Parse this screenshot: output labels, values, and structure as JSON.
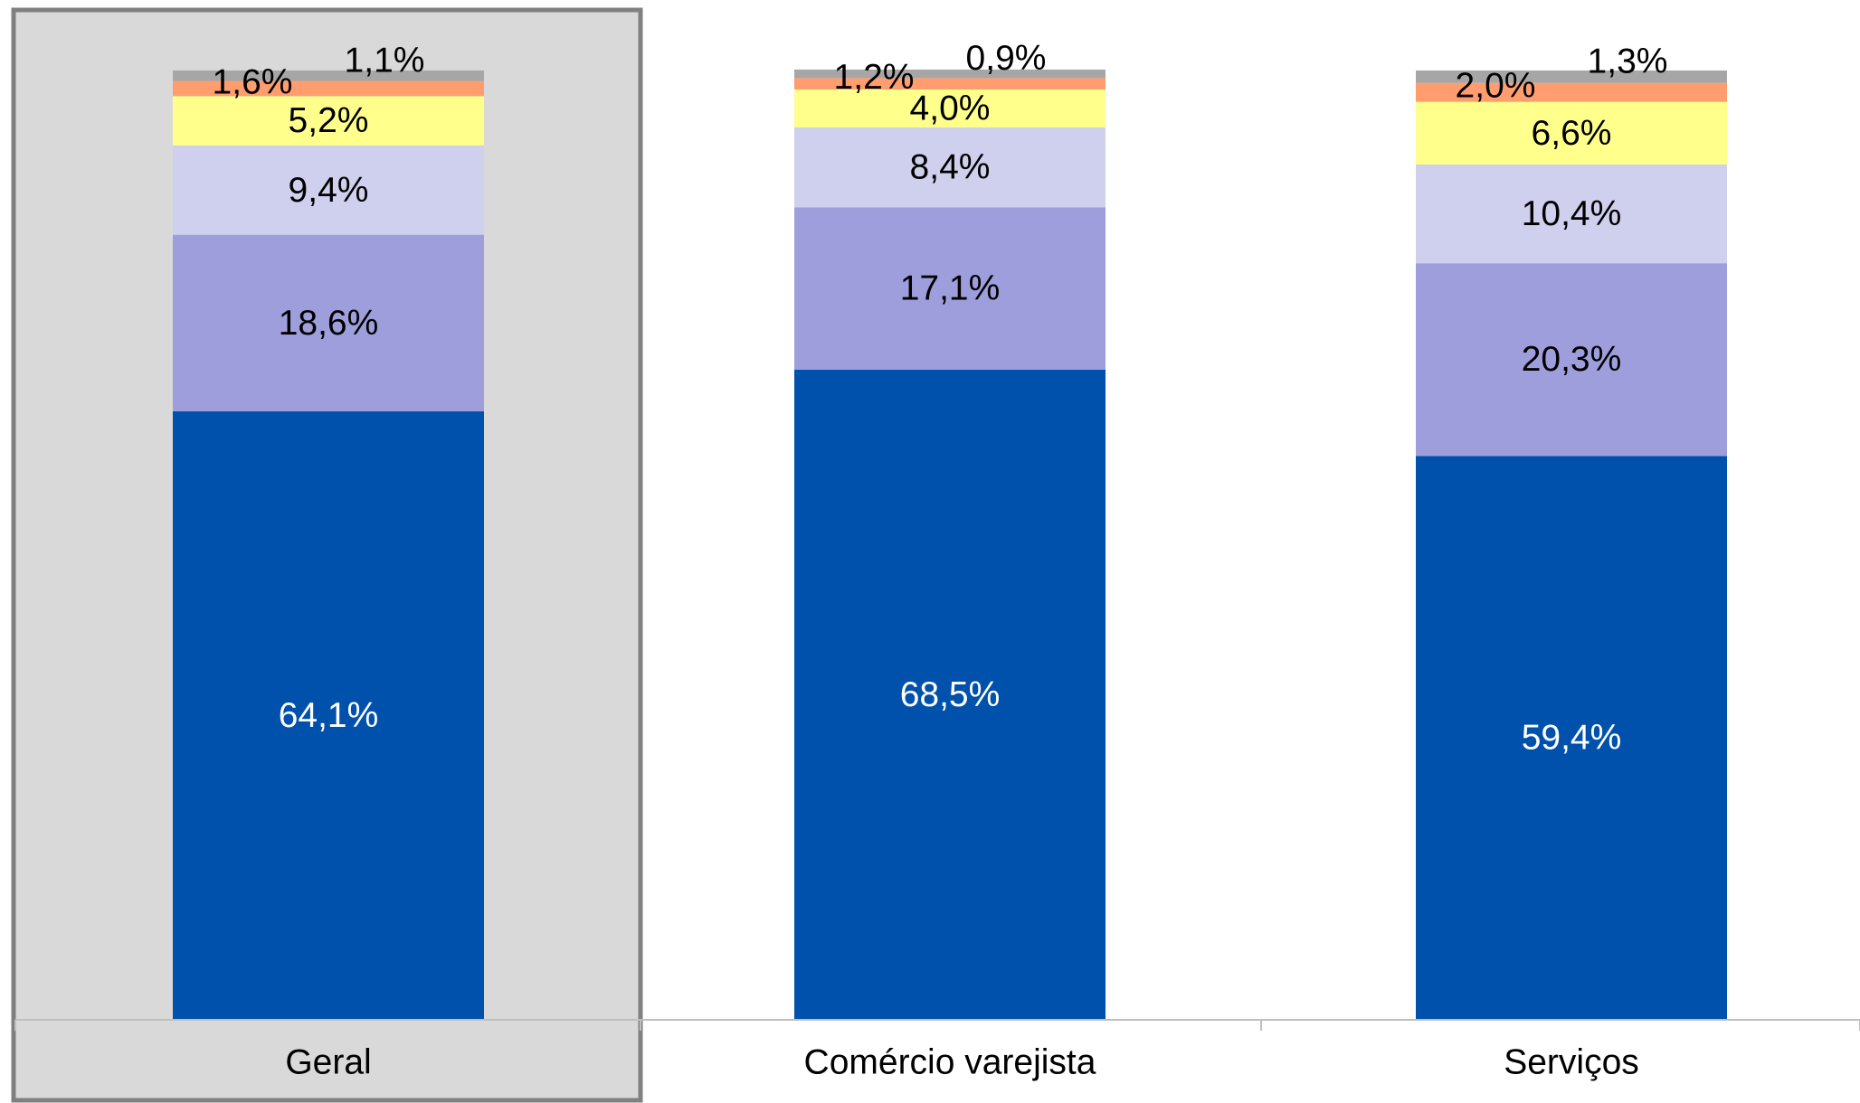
{
  "chart_data": {
    "type": "bar",
    "stacked": true,
    "normalized": true,
    "categories": [
      "Geral",
      "Comércio varejista",
      "Serviços"
    ],
    "series": [
      {
        "values": [
          64.1,
          68.5,
          59.4
        ],
        "labels": [
          "64,1%",
          "68,5%",
          "59,4%"
        ],
        "color": "#0051AC",
        "label_color": "#FFFFFF"
      },
      {
        "values": [
          18.6,
          17.1,
          20.3
        ],
        "labels": [
          "18,6%",
          "17,1%",
          "20,3%"
        ],
        "color": "#9E9EDD",
        "label_color": "#000000"
      },
      {
        "values": [
          9.4,
          8.4,
          10.4
        ],
        "labels": [
          "9,4%",
          "8,4%",
          "10,4%"
        ],
        "color": "#CFCFEE",
        "label_color": "#000000"
      },
      {
        "values": [
          5.2,
          4.0,
          6.6
        ],
        "labels": [
          "5,2%",
          "4,0%",
          "6,6%"
        ],
        "color": "#FFFF8B",
        "label_color": "#000000"
      },
      {
        "values": [
          1.6,
          1.2,
          2.0
        ],
        "labels": [
          "1,6%",
          "1,2%",
          "2,0%"
        ],
        "color": "#FF9D6F",
        "label_color": "#000000"
      },
      {
        "values": [
          1.1,
          0.9,
          1.3
        ],
        "labels": [
          "1,1%",
          "0,9%",
          "1,3%"
        ],
        "color": "#A6A6A6",
        "label_color": "#000000"
      }
    ],
    "ylim": [
      0,
      100
    ],
    "grid": false,
    "highlighted_category": "Geral",
    "highlight_color": "#D9D9D9",
    "highlight_border_color": "#808080",
    "axis_color": "#BFBFBF"
  }
}
